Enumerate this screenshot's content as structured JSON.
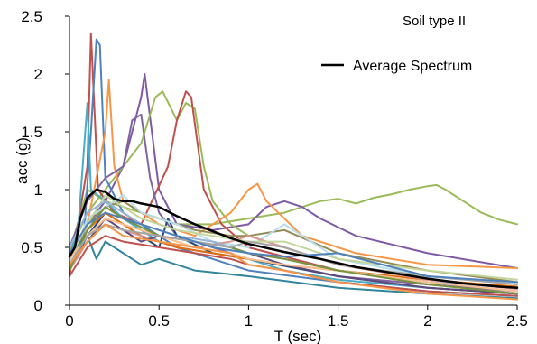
{
  "chart_data": {
    "type": "line",
    "annotation": "Soil type II",
    "xlabel": "T (sec)",
    "ylabel": "acc (g)",
    "xlim": [
      0,
      2.5
    ],
    "ylim": [
      0,
      2.5
    ],
    "x_ticks": [
      0,
      0.5,
      1,
      1.5,
      2,
      2.5
    ],
    "x_tick_labels": [
      "0",
      "0.5",
      "1",
      "1.5",
      "2",
      "2.5"
    ],
    "y_ticks": [
      0,
      0.5,
      1,
      1.5,
      2,
      2.5
    ],
    "y_tick_labels": [
      "0",
      "0.5",
      "1",
      "1.5",
      "2",
      "2.5"
    ],
    "grid": false,
    "legend": {
      "position": "top-right",
      "entries": [
        "Average Spectrum"
      ]
    },
    "series": [
      {
        "name": "Average Spectrum",
        "color": "#000000",
        "emphasis": true,
        "x": [
          0,
          0.03,
          0.06,
          0.1,
          0.15,
          0.2,
          0.25,
          0.3,
          0.35,
          0.4,
          0.5,
          0.6,
          0.7,
          0.8,
          0.9,
          1.0,
          1.2,
          1.4,
          1.6,
          1.8,
          2.0,
          2.2,
          2.4,
          2.5
        ],
        "y": [
          0.42,
          0.5,
          0.75,
          0.93,
          1.0,
          0.98,
          0.92,
          0.9,
          0.9,
          0.88,
          0.85,
          0.77,
          0.7,
          0.64,
          0.58,
          0.53,
          0.46,
          0.4,
          0.33,
          0.28,
          0.23,
          0.19,
          0.16,
          0.15
        ]
      },
      {
        "color": "#9bbb59",
        "x": [
          0,
          0.1,
          0.2,
          0.4,
          0.5,
          0.6,
          0.8,
          1.0,
          1.2,
          1.3,
          1.4,
          1.5,
          1.6,
          1.7,
          1.8,
          1.9,
          2.0,
          2.05,
          2.1,
          2.2,
          2.3,
          2.4,
          2.5
        ],
        "y": [
          0.45,
          1.0,
          0.9,
          0.8,
          0.75,
          0.7,
          0.7,
          0.75,
          0.8,
          0.85,
          0.9,
          0.92,
          0.88,
          0.93,
          0.96,
          1.0,
          1.03,
          1.04,
          1.0,
          0.9,
          0.8,
          0.74,
          0.7
        ]
      },
      {
        "color": "#7e5aa6",
        "x": [
          0,
          0.1,
          0.2,
          0.3,
          0.4,
          0.42,
          0.5,
          0.6,
          0.8,
          1.0,
          1.1,
          1.2,
          1.3,
          1.4,
          1.6,
          2.0,
          2.5
        ],
        "y": [
          0.4,
          0.7,
          0.9,
          1.2,
          1.8,
          2.0,
          1.0,
          0.7,
          0.65,
          0.7,
          0.85,
          0.9,
          0.85,
          0.75,
          0.6,
          0.45,
          0.32
        ]
      },
      {
        "color": "#9bbb59",
        "x": [
          0,
          0.1,
          0.2,
          0.3,
          0.4,
          0.48,
          0.52,
          0.6,
          0.65,
          0.7,
          0.75,
          0.8,
          0.9,
          1.0,
          1.2,
          1.5,
          2.0,
          2.5
        ],
        "y": [
          0.45,
          0.8,
          1.0,
          1.2,
          1.4,
          1.8,
          1.85,
          1.6,
          1.75,
          1.7,
          1.2,
          0.9,
          0.7,
          0.6,
          0.5,
          0.35,
          0.22,
          0.15
        ]
      },
      {
        "color": "#c0504d",
        "x": [
          0,
          0.1,
          0.12,
          0.16,
          0.25,
          0.4,
          0.55,
          0.6,
          0.65,
          0.68,
          0.75,
          0.85,
          1.0,
          1.5,
          2.0,
          2.5
        ],
        "y": [
          0.25,
          1.2,
          2.35,
          1.0,
          0.8,
          0.7,
          1.2,
          1.6,
          1.85,
          1.8,
          1.0,
          0.7,
          0.5,
          0.3,
          0.2,
          0.12
        ]
      },
      {
        "color": "#4f81bd",
        "x": [
          0,
          0.08,
          0.12,
          0.15,
          0.17,
          0.2,
          0.3,
          0.4,
          0.5,
          0.6,
          0.8,
          1.0,
          1.5,
          2.0,
          2.5
        ],
        "y": [
          0.3,
          0.6,
          1.5,
          2.3,
          2.25,
          1.1,
          0.8,
          0.7,
          0.6,
          0.5,
          0.4,
          0.3,
          0.2,
          0.12,
          0.08
        ]
      },
      {
        "color": "#f79646",
        "x": [
          0,
          0.1,
          0.2,
          0.22,
          0.25,
          0.3,
          0.5,
          0.7,
          0.9,
          1.0,
          1.05,
          1.1,
          1.3,
          1.6,
          2.0,
          2.5
        ],
        "y": [
          0.35,
          0.7,
          1.5,
          1.95,
          1.2,
          0.9,
          0.7,
          0.6,
          0.8,
          1.0,
          1.05,
          0.9,
          0.6,
          0.45,
          0.35,
          0.32
        ]
      },
      {
        "color": "#4bacc6",
        "x": [
          0,
          0.05,
          0.1,
          0.12,
          0.2,
          0.3,
          0.4,
          0.5,
          0.6,
          0.8,
          1.0,
          1.2,
          1.5,
          2.0,
          2.5
        ],
        "y": [
          0.4,
          0.7,
          1.75,
          1.0,
          0.9,
          0.75,
          0.65,
          0.55,
          0.5,
          0.45,
          0.4,
          0.3,
          0.22,
          0.15,
          0.1
        ]
      },
      {
        "color": "#8064a2",
        "x": [
          0,
          0.1,
          0.2,
          0.3,
          0.35,
          0.4,
          0.45,
          0.5,
          0.6,
          0.8,
          1.0,
          1.5,
          2.0,
          2.5
        ],
        "y": [
          0.5,
          0.9,
          1.1,
          1.2,
          1.6,
          1.65,
          1.1,
          0.8,
          0.6,
          0.5,
          0.4,
          0.25,
          0.18,
          0.12
        ]
      },
      {
        "color": "#1f497d",
        "x": [
          0,
          0.1,
          0.2,
          0.3,
          0.4,
          0.5,
          0.55,
          0.6,
          0.8,
          1.0,
          1.5,
          2.0,
          2.5
        ],
        "y": [
          0.3,
          0.6,
          0.8,
          0.7,
          0.6,
          0.5,
          0.75,
          0.6,
          0.45,
          0.4,
          0.25,
          0.15,
          0.1
        ]
      },
      {
        "color": "#948a54",
        "x": [
          0,
          0.1,
          0.2,
          0.3,
          0.4,
          0.5,
          0.7,
          0.9,
          1.0,
          1.2,
          1.5,
          2.0,
          2.5
        ],
        "y": [
          0.35,
          0.7,
          0.85,
          0.9,
          0.8,
          0.75,
          0.65,
          0.6,
          0.6,
          0.65,
          0.45,
          0.3,
          0.2
        ]
      },
      {
        "color": "#b7dee8",
        "x": [
          0,
          0.1,
          0.2,
          0.3,
          0.4,
          0.6,
          0.8,
          1.0,
          1.2,
          1.5,
          2.0,
          2.5
        ],
        "y": [
          0.35,
          0.75,
          0.85,
          0.95,
          0.8,
          0.7,
          0.55,
          0.5,
          0.7,
          0.4,
          0.25,
          0.18
        ]
      },
      {
        "color": "#e46c0a",
        "x": [
          0,
          0.1,
          0.2,
          0.3,
          0.4,
          0.5,
          0.6,
          0.8,
          1.0,
          1.2,
          1.5,
          2.0,
          2.5
        ],
        "y": [
          0.3,
          0.65,
          0.8,
          0.7,
          0.6,
          0.55,
          0.5,
          0.45,
          0.4,
          0.35,
          0.3,
          0.22,
          0.16
        ]
      },
      {
        "color": "#31859c",
        "x": [
          0,
          0.1,
          0.15,
          0.2,
          0.3,
          0.4,
          0.5,
          0.7,
          1.0,
          1.5,
          2.0,
          2.5
        ],
        "y": [
          0.45,
          0.6,
          0.4,
          0.55,
          0.45,
          0.35,
          0.4,
          0.3,
          0.25,
          0.15,
          0.1,
          0.06
        ]
      },
      {
        "color": "#d99694",
        "x": [
          0,
          0.1,
          0.2,
          0.3,
          0.4,
          0.5,
          0.7,
          0.9,
          1.0,
          1.2,
          1.5,
          2.0,
          2.5
        ],
        "y": [
          0.3,
          0.55,
          0.7,
          0.65,
          0.6,
          0.55,
          0.5,
          0.55,
          0.6,
          0.5,
          0.35,
          0.22,
          0.14
        ]
      },
      {
        "color": "#c3d69b",
        "x": [
          0,
          0.1,
          0.2,
          0.3,
          0.4,
          0.6,
          0.8,
          1.0,
          1.2,
          1.5,
          2.0,
          2.5
        ],
        "y": [
          0.4,
          0.7,
          0.95,
          0.85,
          0.75,
          0.65,
          0.6,
          0.55,
          0.55,
          0.4,
          0.3,
          0.22
        ]
      },
      {
        "color": "#604a7b",
        "x": [
          0,
          0.1,
          0.2,
          0.3,
          0.4,
          0.5,
          0.7,
          0.9,
          1.0,
          1.2,
          1.5,
          2.0,
          2.5
        ],
        "y": [
          0.35,
          0.55,
          0.75,
          0.65,
          0.55,
          0.6,
          0.55,
          0.5,
          0.45,
          0.35,
          0.25,
          0.15,
          0.1
        ]
      },
      {
        "color": "#95b3d7",
        "x": [
          0,
          0.1,
          0.2,
          0.3,
          0.4,
          0.6,
          0.8,
          1.0,
          1.2,
          1.5,
          2.0,
          2.5
        ],
        "y": [
          0.5,
          0.8,
          0.9,
          0.8,
          0.7,
          0.6,
          0.55,
          0.45,
          0.4,
          0.3,
          0.2,
          0.15
        ]
      },
      {
        "color": "#fac090",
        "x": [
          0,
          0.1,
          0.2,
          0.3,
          0.5,
          0.7,
          0.9,
          1.0,
          1.2,
          1.5,
          2.0,
          2.5
        ],
        "y": [
          0.4,
          0.6,
          0.75,
          0.7,
          0.6,
          0.5,
          0.45,
          0.4,
          0.35,
          0.3,
          0.2,
          0.12
        ]
      },
      {
        "color": "#77933c",
        "x": [
          0,
          0.1,
          0.2,
          0.3,
          0.5,
          0.7,
          0.9,
          1.0,
          1.2,
          1.5,
          2.0,
          2.5
        ],
        "y": [
          0.3,
          0.65,
          0.85,
          0.75,
          0.6,
          0.55,
          0.5,
          0.45,
          0.4,
          0.3,
          0.18,
          0.1
        ]
      },
      {
        "color": "#a5a5a5",
        "x": [
          0,
          0.1,
          0.2,
          0.3,
          0.5,
          0.7,
          0.9,
          1.0,
          1.2,
          1.5,
          2.0,
          2.5
        ],
        "y": [
          0.35,
          0.6,
          0.7,
          0.65,
          0.6,
          0.55,
          0.5,
          0.55,
          0.5,
          0.35,
          0.25,
          0.18
        ]
      },
      {
        "color": "#4f81bd",
        "x": [
          0,
          0.1,
          0.2,
          0.3,
          0.5,
          0.7,
          0.8,
          1.0,
          1.2,
          1.5,
          2.0,
          2.5
        ],
        "y": [
          0.45,
          0.7,
          0.8,
          0.75,
          0.65,
          0.55,
          0.5,
          0.45,
          0.42,
          0.45,
          0.25,
          0.2
        ]
      },
      {
        "color": "#c0504d",
        "x": [
          0,
          0.1,
          0.2,
          0.3,
          0.5,
          0.7,
          0.9,
          1.0,
          1.2,
          1.5,
          2.0,
          2.5
        ],
        "y": [
          0.25,
          0.5,
          0.6,
          0.55,
          0.5,
          0.45,
          0.4,
          0.35,
          0.3,
          0.2,
          0.12,
          0.08
        ]
      },
      {
        "color": "#f79646",
        "x": [
          0,
          0.1,
          0.2,
          0.3,
          0.5,
          0.7,
          0.9,
          1.0,
          1.2,
          1.5,
          2.0,
          2.5
        ],
        "y": [
          0.35,
          0.55,
          0.7,
          0.6,
          0.55,
          0.5,
          0.45,
          0.35,
          0.3,
          0.2,
          0.1,
          0.05
        ]
      }
    ]
  }
}
